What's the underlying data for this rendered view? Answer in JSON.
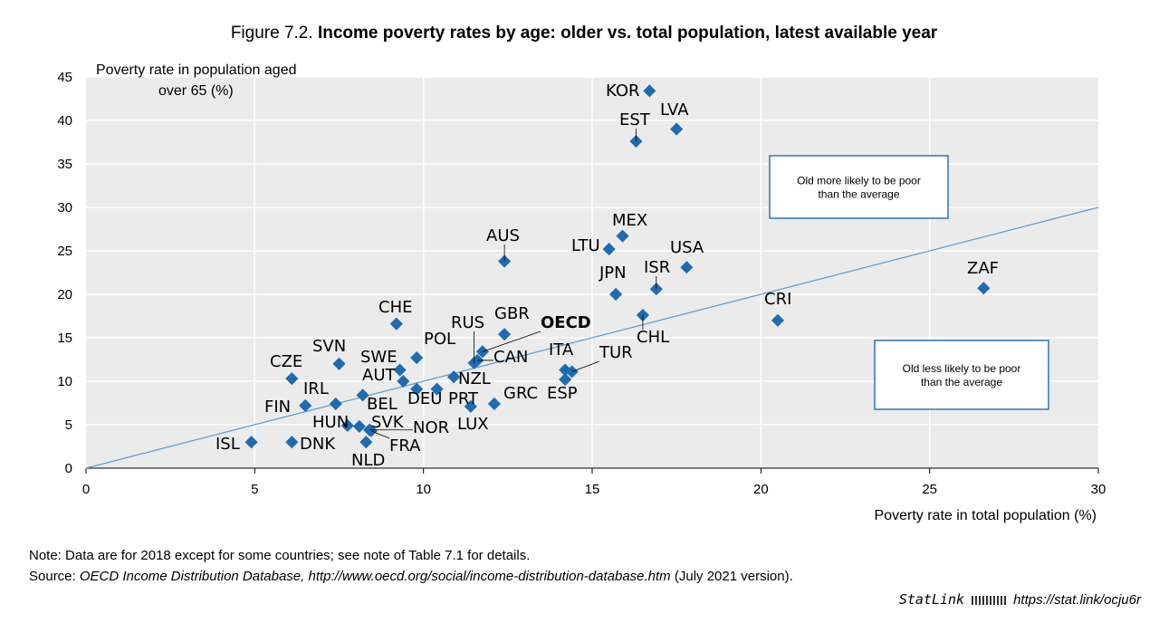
{
  "title_prefix": "Figure 7.2.",
  "title_bold": "Income poverty rates by age: older vs. total population, latest available year",
  "note": "Note: Data are for 2018 except for some countries; see note of Table 7.1 for details.",
  "source_label": "Source: ",
  "source_italic": "OECD Income Distribution Database, http://www.oecd.org/social/income-distribution-database.htm",
  "source_suffix": " (July 2021 version).",
  "statlink_label": "StatLink",
  "statlink_url": "https://stat.link/ocju6r",
  "chart_data": {
    "type": "scatter",
    "xlabel": "Poverty rate in total population (%)",
    "ylabel_line1": "Poverty rate in population aged",
    "ylabel_line2": "over 65 (%)",
    "xlim": [
      0,
      30
    ],
    "ylim": [
      0,
      45
    ],
    "xticks": [
      0,
      5,
      10,
      15,
      20,
      25,
      30
    ],
    "yticks": [
      0,
      5,
      10,
      15,
      20,
      25,
      30,
      35,
      40,
      45
    ],
    "grid": true,
    "reference_line": {
      "type": "y=x"
    },
    "annotations": [
      "Old more likely to be poor than the average",
      "Old less likely to be poor than the average"
    ],
    "marker_color": "#1f6bb0",
    "line_color": "#5b9bd5",
    "points": [
      {
        "name": "KOR",
        "x": 16.7,
        "y": 43.4
      },
      {
        "name": "LVA",
        "x": 17.5,
        "y": 39.0
      },
      {
        "name": "EST",
        "x": 16.3,
        "y": 37.6
      },
      {
        "name": "MEX",
        "x": 15.9,
        "y": 26.7
      },
      {
        "name": "LTU",
        "x": 15.5,
        "y": 25.2
      },
      {
        "name": "AUS",
        "x": 12.4,
        "y": 23.8
      },
      {
        "name": "USA",
        "x": 17.8,
        "y": 23.1
      },
      {
        "name": "ISR",
        "x": 16.9,
        "y": 20.6
      },
      {
        "name": "JPN",
        "x": 15.7,
        "y": 20.0
      },
      {
        "name": "CHL",
        "x": 16.5,
        "y": 17.6
      },
      {
        "name": "CRI",
        "x": 20.5,
        "y": 17.0
      },
      {
        "name": "ZAF",
        "x": 26.6,
        "y": 20.7
      },
      {
        "name": "CHE",
        "x": 9.2,
        "y": 16.6
      },
      {
        "name": "GBR",
        "x": 12.4,
        "y": 15.4
      },
      {
        "name": "OECD",
        "x": 11.75,
        "y": 13.4
      },
      {
        "name": "CAN",
        "x": 11.6,
        "y": 12.4
      },
      {
        "name": "RUS",
        "x": 11.5,
        "y": 12.1
      },
      {
        "name": "NZL",
        "x": 10.9,
        "y": 10.5
      },
      {
        "name": "POL",
        "x": 9.8,
        "y": 12.7
      },
      {
        "name": "SWE",
        "x": 9.3,
        "y": 11.3
      },
      {
        "name": "AUT",
        "x": 9.4,
        "y": 10.0
      },
      {
        "name": "DEU",
        "x": 9.8,
        "y": 9.1
      },
      {
        "name": "PRT",
        "x": 10.4,
        "y": 9.1
      },
      {
        "name": "SVN",
        "x": 7.5,
        "y": 12.0
      },
      {
        "name": "CZE",
        "x": 6.1,
        "y": 10.3
      },
      {
        "name": "BEL",
        "x": 8.2,
        "y": 8.4
      },
      {
        "name": "IRL",
        "x": 7.4,
        "y": 7.4
      },
      {
        "name": "FIN",
        "x": 6.5,
        "y": 7.2
      },
      {
        "name": "HUN",
        "x": 7.75,
        "y": 4.9
      },
      {
        "name": "SVK",
        "x": 8.1,
        "y": 4.8
      },
      {
        "name": "NOR",
        "x": 8.4,
        "y": 4.4
      },
      {
        "name": "FRA",
        "x": 8.45,
        "y": 4.3
      },
      {
        "name": "NLD",
        "x": 8.3,
        "y": 3.0
      },
      {
        "name": "DNK",
        "x": 6.1,
        "y": 3.0
      },
      {
        "name": "ISL",
        "x": 4.9,
        "y": 3.0
      },
      {
        "name": "LUX",
        "x": 11.4,
        "y": 7.1
      },
      {
        "name": "GRC",
        "x": 12.1,
        "y": 7.4
      },
      {
        "name": "ITA",
        "x": 14.2,
        "y": 11.3
      },
      {
        "name": "TUR",
        "x": 14.4,
        "y": 11.1
      },
      {
        "name": "ESP",
        "x": 14.2,
        "y": 10.2
      }
    ]
  }
}
